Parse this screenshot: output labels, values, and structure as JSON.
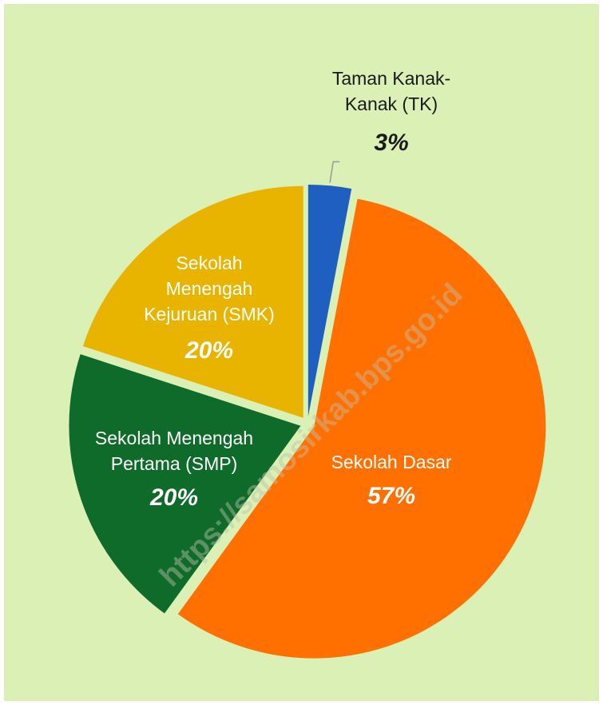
{
  "chart_data": {
    "type": "pie",
    "categories": [
      "Taman Kanak-\nKanak (TK)",
      "Sekolah Dasar",
      "Sekolah Menengah\nPertama (SMP)",
      "Sekolah\nMenengah\nKejuruan (SMK)"
    ],
    "values": [
      3,
      57,
      20,
      20
    ],
    "value_labels": [
      "3%",
      "57%",
      "20%",
      "20%"
    ],
    "colors": [
      "#1f5fbf",
      "#ff7000",
      "#0e6b2a",
      "#e8b400"
    ],
    "watermark": "https://samosirkab.bps.go.id"
  }
}
